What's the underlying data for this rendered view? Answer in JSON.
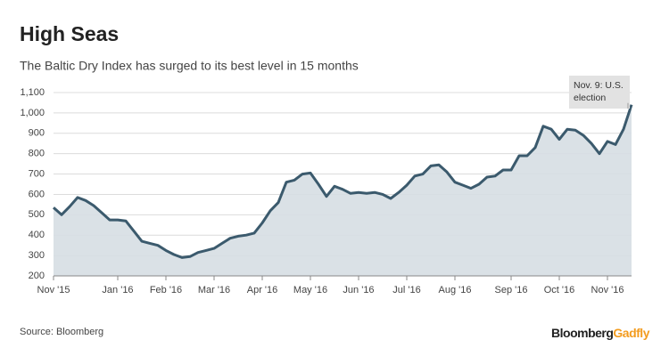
{
  "chart_data": {
    "type": "area",
    "title": "High Seas",
    "subtitle": "The Baltic Dry Index has surged to its best level in 15 months",
    "source": "Source: Bloomberg",
    "brand": [
      "Bloomberg",
      "Gadfly"
    ],
    "annotation": [
      "Nov. 9: U.S.",
      "election"
    ],
    "categories": [
      "Nov '15",
      null,
      null,
      null,
      null,
      null,
      null,
      null,
      "Jan '16",
      null,
      null,
      null,
      null,
      null,
      "Feb '16",
      null,
      null,
      null,
      null,
      null,
      "Mar '16",
      null,
      null,
      null,
      null,
      null,
      "Apr '16",
      null,
      null,
      null,
      null,
      null,
      "May '16",
      null,
      null,
      null,
      null,
      null,
      "Jun '16",
      null,
      null,
      null,
      null,
      null,
      "Jul '16",
      null,
      null,
      null,
      null,
      null,
      "Aug '16",
      null,
      null,
      null,
      null,
      null,
      null,
      "Sep '16",
      null,
      null,
      null,
      null,
      null,
      "Oct '16",
      null,
      null,
      null,
      null,
      null,
      "Nov '16",
      null,
      null,
      null
    ],
    "values": [
      535,
      500,
      540,
      585,
      570,
      545,
      510,
      475,
      475,
      470,
      420,
      370,
      360,
      350,
      325,
      305,
      290,
      295,
      315,
      325,
      335,
      360,
      385,
      395,
      400,
      410,
      460,
      520,
      560,
      660,
      670,
      700,
      705,
      650,
      590,
      640,
      625,
      605,
      610,
      605,
      610,
      600,
      580,
      610,
      645,
      690,
      700,
      740,
      745,
      710,
      660,
      645,
      630,
      650,
      685,
      690,
      720,
      720,
      790,
      790,
      830,
      935,
      920,
      870,
      920,
      915,
      890,
      850,
      800,
      860,
      845,
      920,
      1040
    ],
    "color": "#3b5a6d",
    "fill": "#d6dee3",
    "ylim": [
      200,
      1100
    ],
    "yticks": [
      200,
      300,
      400,
      500,
      600,
      700,
      800,
      900,
      {
        "value": 1000,
        "label": "1,000"
      },
      {
        "value": 1100,
        "label": "1,100"
      }
    ],
    "grid": true
  }
}
